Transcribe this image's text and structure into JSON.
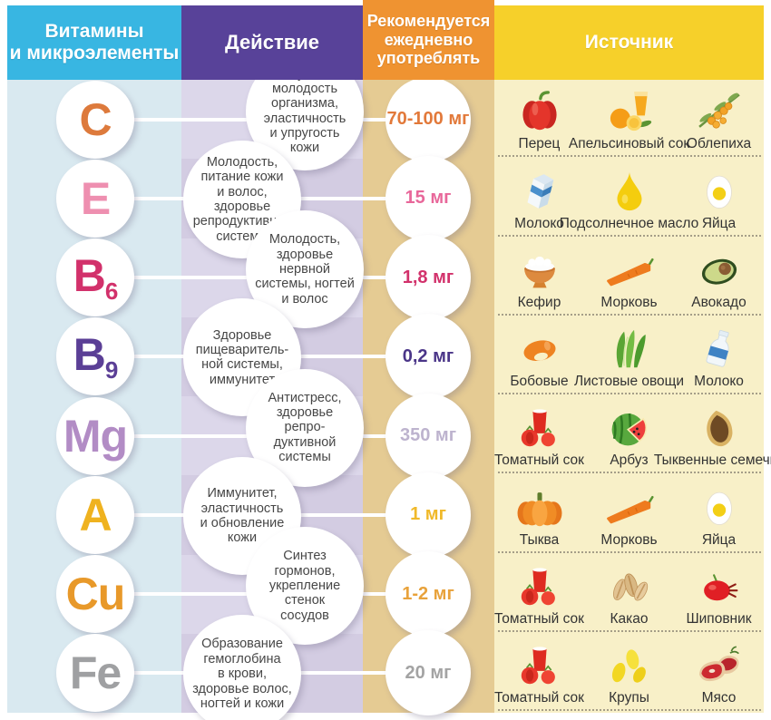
{
  "header": {
    "col1": "Витамины\nи микроэлементы",
    "col2": "Действие",
    "col3": "Рекомендуется\nежедневно\nупотреблять",
    "col4": "Источник"
  },
  "colors": {
    "header_cyan": "#38b6e2",
    "header_purple": "#584299",
    "header_orange": "#ef9331",
    "header_yellow": "#f6d02a",
    "col1_bg": "#d9e9f0",
    "col2_bg_light": "#dcd7ea",
    "col2_bg_dark": "#d3cce2",
    "col3_bg": "#e5cb93",
    "col4_bg": "#f8f0c8",
    "circle_bg": "#ffffff",
    "bubble_text": "#474747",
    "source_label": "#333333",
    "separator": "#a59e88",
    "connector": "#ffffff",
    "header_text": "#ffffff"
  },
  "rows": [
    {
      "symbol": "C",
      "sub": "",
      "symbol_color": "#dd7a3c",
      "action": "Иммунитет,\nмолодость\nорганизма,\nэластичность\nи упругость\nкожи",
      "dose": "70-100 мг",
      "dose_color": "#e2793a",
      "sources": [
        {
          "label": "Перец",
          "icon": "pepper"
        },
        {
          "label": "Апельсиновый сок",
          "icon": "orange-juice"
        },
        {
          "label": "Облепиха",
          "icon": "sea-buckthorn"
        }
      ]
    },
    {
      "symbol": "E",
      "sub": "",
      "symbol_color": "#ee8fb0",
      "action": "Молодость,\nпитание кожи\nи волос,\nздоровье\nрепродуктивной\nсистемы",
      "dose": "15 мг",
      "dose_color": "#e8679a",
      "sources": [
        {
          "label": "Молоко",
          "icon": "milk-carton"
        },
        {
          "label": "Подсолнечное масло",
          "icon": "oil-drop"
        },
        {
          "label": "Яйца",
          "icon": "egg"
        }
      ]
    },
    {
      "symbol": "B",
      "sub": "6",
      "symbol_color": "#d2316b",
      "action": "Молодость,\nздоровье\nнервной\nсистемы, ногтей\nи волос",
      "dose": "1,8 мг",
      "dose_color": "#d2316b",
      "sources": [
        {
          "label": "Кефир",
          "icon": "kefir-bowl"
        },
        {
          "label": "Морковь",
          "icon": "carrot"
        },
        {
          "label": "Авокадо",
          "icon": "avocado"
        }
      ]
    },
    {
      "symbol": "B",
      "sub": "9",
      "symbol_color": "#5b3f96",
      "action": "Здоровье\nпищеваритель-\nной системы,\nиммунитет",
      "dose": "0,2 мг",
      "dose_color": "#4a3588",
      "sources": [
        {
          "label": "Бобовые",
          "icon": "beans"
        },
        {
          "label": "Листовые овощи",
          "icon": "leafy-greens"
        },
        {
          "label": "Молоко",
          "icon": "milk-bottle"
        }
      ]
    },
    {
      "symbol": "Mg",
      "sub": "",
      "symbol_color": "#b28cc5",
      "action": "Антистресс,\nздоровье\nрепро-\nдуктивной\nсистемы",
      "dose": "350 мг",
      "dose_color": "#bdb3ce",
      "sources": [
        {
          "label": "Томатный сок",
          "icon": "tomato-juice"
        },
        {
          "label": "Арбуз",
          "icon": "watermelon"
        },
        {
          "label": "Тыквенные семечки",
          "icon": "pumpkin-seed"
        }
      ]
    },
    {
      "symbol": "A",
      "sub": "",
      "symbol_color": "#efb21f",
      "action": "Иммунитет,\nэластичность\nи обновление\nкожи",
      "dose": "1 мг",
      "dose_color": "#f0b929",
      "sources": [
        {
          "label": "Тыква",
          "icon": "pumpkin"
        },
        {
          "label": "Морковь",
          "icon": "carrot"
        },
        {
          "label": "Яйца",
          "icon": "egg"
        }
      ]
    },
    {
      "symbol": "Cu",
      "sub": "",
      "symbol_color": "#e8992a",
      "action": "Синтез\nгормонов,\nукрепление\nстенок\nсосудов",
      "dose": "1-2 мг",
      "dose_color": "#e8a23b",
      "sources": [
        {
          "label": "Томатный сок",
          "icon": "tomato-juice"
        },
        {
          "label": "Какао",
          "icon": "cocoa"
        },
        {
          "label": "Шиповник",
          "icon": "rosehip"
        }
      ]
    },
    {
      "symbol": "Fe",
      "sub": "",
      "symbol_color": "#9fa0a2",
      "action": "Образование\nгемоглобина\nв крови,\nздоровье волос,\nногтей и кожи",
      "dose": "20 мг",
      "dose_color": "#a3a3a3",
      "sources": [
        {
          "label": "Томатный сок",
          "icon": "tomato-juice"
        },
        {
          "label": "Крупы",
          "icon": "grains"
        },
        {
          "label": "Мясо",
          "icon": "meat"
        }
      ]
    }
  ]
}
